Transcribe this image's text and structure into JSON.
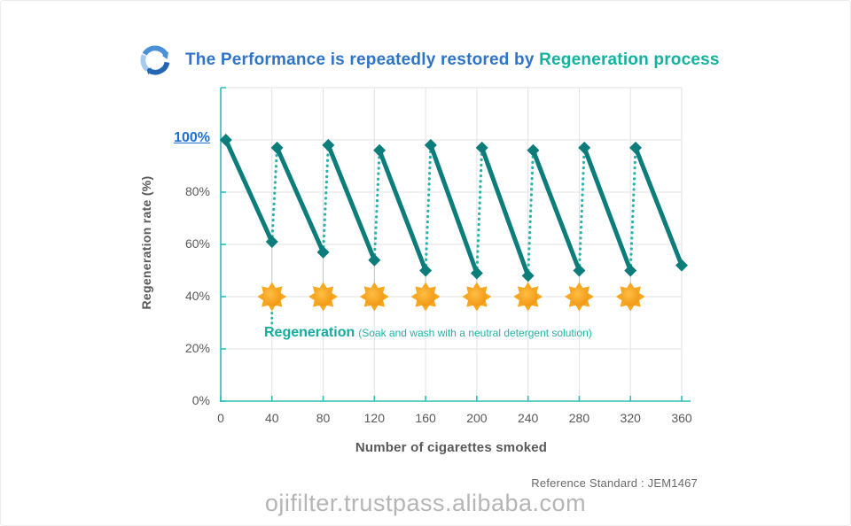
{
  "title": {
    "prefix": "The Performance is repeatedly restored by ",
    "highlight": "Regeneration process"
  },
  "icons": {
    "header": "cycle-arrows-icon",
    "event": "sun-icon"
  },
  "colors": {
    "title_blue": "#2E74C8",
    "title_teal": "#12B29E",
    "highlight_blue": "#1E6FD6",
    "text_gray": "#595959",
    "line_solid": "#0D7D7B",
    "line_dotted": "#28B2A8",
    "axis_teal": "#2EBDB5",
    "grid_gray": "#E2E2E2",
    "drop_line_gray": "#C9C9C9",
    "sun_orange": "#F6A01B",
    "sun_ray_orange": "#F9A71F",
    "watermark_gray": "#B5B5B5"
  },
  "chart_data": {
    "type": "line",
    "xlabel": "Number of cigarettes smoked",
    "ylabel": "Regeneration rate (%)",
    "xlim": [
      0,
      360
    ],
    "ylim": [
      0,
      120
    ],
    "grid": true,
    "x_ticks": [
      0,
      40,
      80,
      120,
      160,
      200,
      240,
      280,
      320,
      360
    ],
    "y_ticks": [
      {
        "value": 100,
        "label": "100%",
        "highlight": true
      },
      {
        "value": 80,
        "label": "80%",
        "highlight": false
      },
      {
        "value": 60,
        "label": "60%",
        "highlight": false
      },
      {
        "value": 40,
        "label": "40%",
        "highlight": false
      },
      {
        "value": 20,
        "label": "20%",
        "highlight": false
      },
      {
        "value": 0,
        "label": "0%",
        "highlight": false
      }
    ],
    "series": [
      {
        "name": "Regeneration rate",
        "points": [
          {
            "x": 4,
            "y": 100
          },
          {
            "x": 40,
            "y": 61
          },
          {
            "x": 44,
            "y": 97,
            "regen": true
          },
          {
            "x": 80,
            "y": 57
          },
          {
            "x": 84,
            "y": 98,
            "regen": true
          },
          {
            "x": 120,
            "y": 54
          },
          {
            "x": 124,
            "y": 96,
            "regen": true
          },
          {
            "x": 160,
            "y": 50
          },
          {
            "x": 164,
            "y": 98,
            "regen": true
          },
          {
            "x": 200,
            "y": 49
          },
          {
            "x": 204,
            "y": 97,
            "regen": true
          },
          {
            "x": 240,
            "y": 48
          },
          {
            "x": 244,
            "y": 96,
            "regen": true
          },
          {
            "x": 280,
            "y": 50
          },
          {
            "x": 284,
            "y": 97,
            "regen": true
          },
          {
            "x": 320,
            "y": 50
          },
          {
            "x": 324,
            "y": 97,
            "regen": true
          },
          {
            "x": 360,
            "y": 52
          }
        ]
      }
    ],
    "regeneration_events_x": [
      40,
      80,
      120,
      160,
      200,
      240,
      280,
      320
    ],
    "event_marker_y": 40
  },
  "annotations": {
    "regeneration_label": "Regeneration",
    "regeneration_note": "(Soak and wash with a neutral detergent solution)"
  },
  "footer": {
    "reference": "Reference Standard : JEM1467",
    "watermark": "ojifilter.trustpass.alibaba.com"
  }
}
